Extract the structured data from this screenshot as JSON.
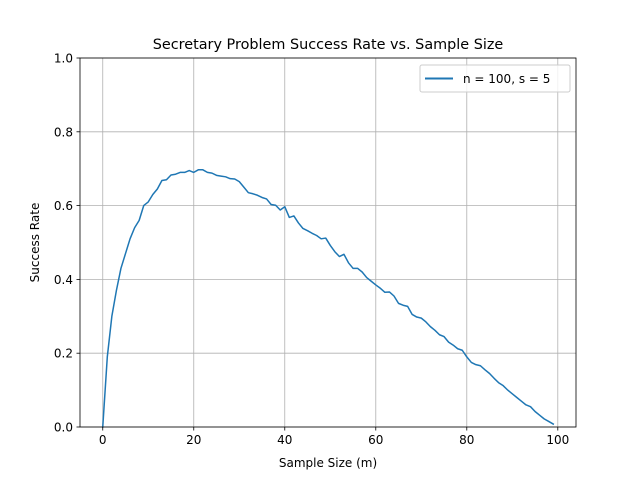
{
  "chart_data": {
    "type": "line",
    "title": "Secretary Problem Success Rate vs. Sample Size",
    "xlabel": "Sample Size (m)",
    "ylabel": "Success Rate",
    "xlim": [
      -5,
      104
    ],
    "ylim": [
      0,
      1.0
    ],
    "x_ticks": [
      0,
      20,
      40,
      60,
      80,
      100
    ],
    "x_tick_labels": [
      "0",
      "20",
      "40",
      "60",
      "80",
      "100"
    ],
    "y_ticks": [
      0,
      0.2,
      0.4,
      0.6,
      0.8,
      1.0
    ],
    "y_tick_labels": [
      "0.0",
      "0.2",
      "0.4",
      "0.6",
      "0.8",
      "1.0"
    ],
    "grid": true,
    "legend_position": "top-right",
    "colors": {
      "series": "#1f77b4",
      "grid": "#b0b0b0"
    },
    "series": [
      {
        "name": "n = 100, s = 5",
        "x": [
          0,
          1,
          2,
          3,
          4,
          5,
          6,
          7,
          8,
          9,
          10,
          11,
          12,
          13,
          14,
          15,
          16,
          17,
          18,
          19,
          20,
          21,
          22,
          23,
          24,
          25,
          26,
          27,
          28,
          29,
          30,
          31,
          32,
          33,
          34,
          35,
          36,
          37,
          38,
          39,
          40,
          41,
          42,
          43,
          44,
          45,
          46,
          47,
          48,
          49,
          50,
          51,
          52,
          53,
          54,
          55,
          56,
          57,
          58,
          59,
          60,
          61,
          62,
          63,
          64,
          65,
          66,
          67,
          68,
          69,
          70,
          71,
          72,
          73,
          74,
          75,
          76,
          77,
          78,
          79,
          80,
          81,
          82,
          83,
          84,
          85,
          86,
          87,
          88,
          89,
          90,
          91,
          92,
          93,
          94,
          95,
          96,
          97,
          98,
          99
        ],
        "y": [
          0.0,
          0.19,
          0.3,
          0.37,
          0.43,
          0.47,
          0.51,
          0.54,
          0.56,
          0.6,
          0.61,
          0.63,
          0.645,
          0.668,
          0.67,
          0.683,
          0.685,
          0.69,
          0.69,
          0.695,
          0.69,
          0.697,
          0.697,
          0.69,
          0.688,
          0.682,
          0.68,
          0.678,
          0.673,
          0.672,
          0.665,
          0.65,
          0.635,
          0.632,
          0.628,
          0.622,
          0.618,
          0.603,
          0.601,
          0.588,
          0.597,
          0.568,
          0.572,
          0.553,
          0.538,
          0.532,
          0.525,
          0.519,
          0.51,
          0.512,
          0.492,
          0.475,
          0.462,
          0.468,
          0.445,
          0.43,
          0.43,
          0.42,
          0.405,
          0.395,
          0.385,
          0.376,
          0.365,
          0.366,
          0.355,
          0.335,
          0.33,
          0.327,
          0.305,
          0.298,
          0.295,
          0.285,
          0.272,
          0.262,
          0.25,
          0.245,
          0.23,
          0.222,
          0.212,
          0.208,
          0.19,
          0.175,
          0.169,
          0.166,
          0.155,
          0.145,
          0.132,
          0.12,
          0.112,
          0.1,
          0.09,
          0.08,
          0.07,
          0.06,
          0.055,
          0.042,
          0.032,
          0.022,
          0.015,
          0.008
        ]
      }
    ]
  }
}
